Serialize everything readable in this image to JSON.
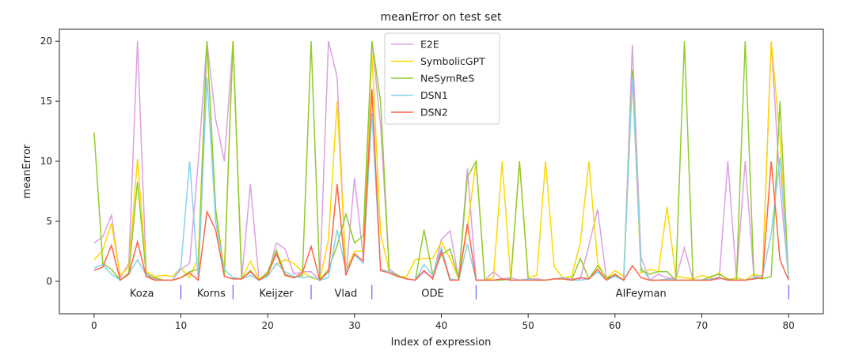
{
  "chart_data": {
    "type": "line",
    "title": "meanError on test set",
    "xlabel": "Index of expression",
    "ylabel": "meanError",
    "xlim": [
      -4,
      84
    ],
    "ylim": [
      -2.7,
      21
    ],
    "xticks": [
      0,
      10,
      20,
      30,
      40,
      50,
      60,
      70,
      80
    ],
    "yticks": [
      0,
      5,
      10,
      15,
      20
    ],
    "grid": false,
    "legend": "top-center",
    "groups": [
      {
        "label": "Koza",
        "label_x": 5.5,
        "end": 10
      },
      {
        "label": "Korns",
        "label_x": 13.5,
        "end": 16
      },
      {
        "label": "Keijzer",
        "label_x": 21,
        "end": 25
      },
      {
        "label": "Vlad",
        "label_x": 29,
        "end": 32
      },
      {
        "label": "ODE",
        "label_x": 39,
        "end": 44
      },
      {
        "label": "AIFeyman",
        "label_x": 63,
        "end": 80
      }
    ],
    "group_separator_color": "#4444ff",
    "series": [
      {
        "name": "E2E",
        "color": "#dda0e0",
        "values": [
          3.2,
          3.7,
          5.5,
          0.3,
          1.5,
          20,
          0.7,
          0.2,
          0.1,
          0.1,
          1,
          1.5,
          10,
          20,
          13.5,
          10,
          20,
          0.2,
          8.1,
          0.1,
          0.5,
          3.2,
          2.7,
          0.6,
          0.8,
          0.8,
          0.1,
          20,
          17,
          0.5,
          8.6,
          2,
          20,
          13,
          1,
          0.5,
          0.2,
          0.1,
          0.8,
          0.3,
          3.5,
          4.2,
          0.2,
          9.4,
          0.1,
          0.1,
          0.8,
          0.2,
          0.3,
          0.1,
          0.2,
          0.2,
          0.1,
          0.2,
          0.3,
          0.2,
          0.2,
          3,
          6,
          0.3,
          0.5,
          0.1,
          19.7,
          2,
          0.1,
          0.6,
          0.3,
          0.2,
          2.8,
          0.1,
          0.1,
          0.1,
          0.2,
          10,
          0.2,
          10,
          0.4,
          0.5,
          20,
          8,
          0.2
        ]
      },
      {
        "name": "SymbolicGPT",
        "color": "#ffd700",
        "values": [
          1.8,
          2.6,
          4.8,
          0.5,
          1.2,
          10.2,
          0.8,
          0.4,
          0.5,
          0.4,
          1.1,
          0.3,
          2,
          20,
          6,
          1,
          20,
          0.2,
          1.7,
          0.2,
          0.5,
          1.4,
          1.8,
          1.5,
          0.8,
          0.3,
          0.1,
          3.5,
          15,
          1,
          2.5,
          2.5,
          19,
          4,
          0.8,
          0.4,
          0.4,
          1.8,
          1.9,
          1.9,
          3.3,
          1.9,
          0.2,
          4.5,
          10,
          0.1,
          0.3,
          10,
          0.1,
          10,
          0.3,
          0.5,
          10,
          1.2,
          0.3,
          0.4,
          3.2,
          10,
          1.5,
          0.2,
          0.9,
          0.4,
          17,
          0.7,
          1,
          0.8,
          6.2,
          0.4,
          0.3,
          0.2,
          0.5,
          0.3,
          0.7,
          0.1,
          0.3,
          0.1,
          0.6,
          0.4,
          20,
          12,
          0.3
        ]
      },
      {
        "name": "NeSymReS",
        "color": "#8fcc2e",
        "values": [
          12.4,
          1.5,
          1,
          0.1,
          0.7,
          8.3,
          0.5,
          0.3,
          0.1,
          0.1,
          0.3,
          0.8,
          1,
          20,
          6,
          0.5,
          20,
          0.2,
          0.9,
          0.1,
          0.8,
          2.6,
          0.6,
          0.3,
          0.5,
          20,
          0.1,
          1,
          3,
          5.6,
          3.2,
          3.8,
          20,
          15,
          0.8,
          0.5,
          0.2,
          0.1,
          4.3,
          0.6,
          2.2,
          2.7,
          0.2,
          8.7,
          10,
          0.1,
          0.1,
          0.1,
          0.2,
          10,
          0.2,
          0.1,
          0.1,
          0.2,
          0.2,
          0.1,
          1.9,
          0.2,
          1.3,
          0.3,
          0.5,
          0.1,
          17.6,
          0.9,
          0.6,
          0.8,
          0.8,
          0.1,
          20,
          0.1,
          0.1,
          0.4,
          0.6,
          0.2,
          0.1,
          20,
          0.3,
          0.2,
          0.4,
          15,
          0.2
        ]
      },
      {
        "name": "DSN1",
        "color": "#87d3ec",
        "values": [
          1.1,
          1.4,
          0.6,
          0.1,
          0.6,
          1.8,
          0.5,
          0.1,
          0.1,
          0.1,
          1.2,
          10,
          0.1,
          17,
          5,
          1,
          0.3,
          0.2,
          0.5,
          0.1,
          0.4,
          1.5,
          0.8,
          0.4,
          0.3,
          0.4,
          0.1,
          0.3,
          4.3,
          0.9,
          2.2,
          1.5,
          14,
          1,
          0.8,
          0.4,
          0.2,
          0.1,
          1.4,
          0.5,
          2.8,
          0.2,
          0.1,
          3.1,
          0.1,
          0.1,
          0.1,
          0.2,
          0.1,
          0.1,
          0.2,
          0.1,
          0.1,
          0.2,
          0.3,
          0.1,
          0.1,
          0.2,
          0.8,
          0.1,
          0.4,
          0.1,
          17,
          1.2,
          0.1,
          0.1,
          0.2,
          0.1,
          0.1,
          0.1,
          0.1,
          0.2,
          0.3,
          0.1,
          0.1,
          0.1,
          0.3,
          0.5,
          4,
          10.3,
          0.2
        ]
      },
      {
        "name": "DSN2",
        "color": "#ff6347",
        "values": [
          0.9,
          1.2,
          3,
          0.1,
          0.6,
          3.3,
          0.4,
          0.1,
          0.1,
          0.1,
          0.3,
          0.7,
          0.1,
          5.8,
          4.3,
          0.4,
          0.2,
          0.2,
          0.8,
          0.1,
          0.6,
          2.3,
          0.5,
          0.3,
          0.7,
          2.9,
          0.1,
          0.8,
          8.1,
          0.5,
          2.3,
          1.7,
          16,
          0.9,
          0.7,
          0.4,
          0.2,
          0.1,
          0.9,
          0.2,
          2.5,
          0.1,
          0.1,
          4.8,
          0.1,
          0.1,
          0.1,
          0.2,
          0.1,
          0.1,
          0.1,
          0.1,
          0.1,
          0.2,
          0.2,
          0.1,
          0.3,
          0.2,
          1,
          0.1,
          0.6,
          0.1,
          1.3,
          0.3,
          0.1,
          0.1,
          0.1,
          0.1,
          0.1,
          0.1,
          0.1,
          0.1,
          0.3,
          0.1,
          0.1,
          0.1,
          0.2,
          0.3,
          10,
          1.8,
          0.1
        ]
      }
    ]
  }
}
